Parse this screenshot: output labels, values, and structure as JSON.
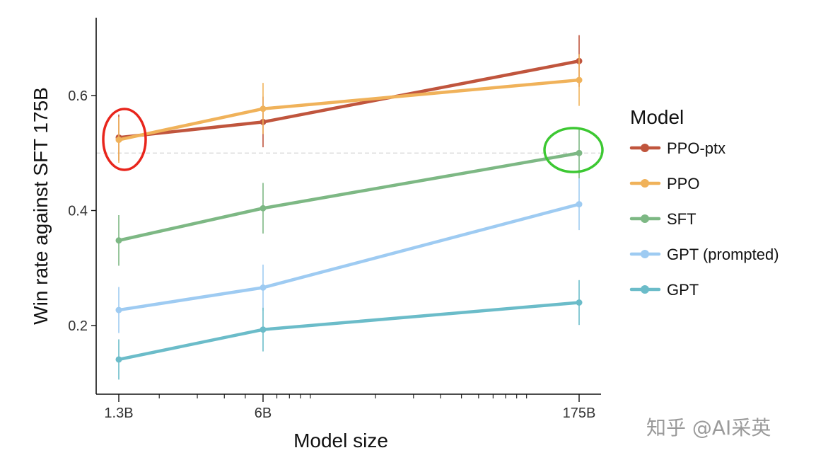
{
  "chart_data": {
    "type": "line",
    "title": "",
    "xlabel": "Model size",
    "ylabel": "Win rate against SFT 175B",
    "x": [
      "1.3B",
      "6B",
      "175B"
    ],
    "x_log_params_billion": [
      1.3,
      6,
      175
    ],
    "ylim": [
      0.1,
      0.75
    ],
    "yticks": [
      0.2,
      0.4,
      0.6
    ],
    "ytick_labels": [
      "0.2",
      "0.4",
      "0.6"
    ],
    "reference_line": 0.5,
    "grid": false,
    "legend_title": "Model",
    "legend_position": "right",
    "series": [
      {
        "name": "PPO-ptx",
        "color": "#c0553d",
        "values": [
          0.527,
          0.554,
          0.66
        ],
        "err_low": [
          0.487,
          0.51,
          0.615
        ],
        "err_high": [
          0.567,
          0.598,
          0.705
        ]
      },
      {
        "name": "PPO",
        "color": "#f0b25a",
        "values": [
          0.523,
          0.577,
          0.627
        ],
        "err_low": [
          0.483,
          0.533,
          0.582
        ],
        "err_high": [
          0.563,
          0.622,
          0.672
        ]
      },
      {
        "name": "SFT",
        "color": "#7db884",
        "values": [
          0.348,
          0.404,
          0.5
        ],
        "err_low": [
          0.304,
          0.36,
          0.456
        ],
        "err_high": [
          0.392,
          0.448,
          0.544
        ]
      },
      {
        "name": "GPT (prompted)",
        "color": "#9ecbf2",
        "values": [
          0.227,
          0.266,
          0.411
        ],
        "err_low": [
          0.187,
          0.226,
          0.366
        ],
        "err_high": [
          0.267,
          0.306,
          0.456
        ]
      },
      {
        "name": "GPT",
        "color": "#6bbcc9",
        "values": [
          0.141,
          0.193,
          0.24
        ],
        "err_low": [
          0.106,
          0.155,
          0.201
        ],
        "err_high": [
          0.176,
          0.231,
          0.279
        ]
      }
    ],
    "annotations": [
      {
        "shape": "ellipse",
        "color": "#e8251c",
        "around": "1.3B PPO-ptx / PPO points"
      },
      {
        "shape": "ellipse",
        "color": "#3cc832",
        "around": "175B SFT point"
      }
    ]
  },
  "watermark": "知乎 @AI采英"
}
